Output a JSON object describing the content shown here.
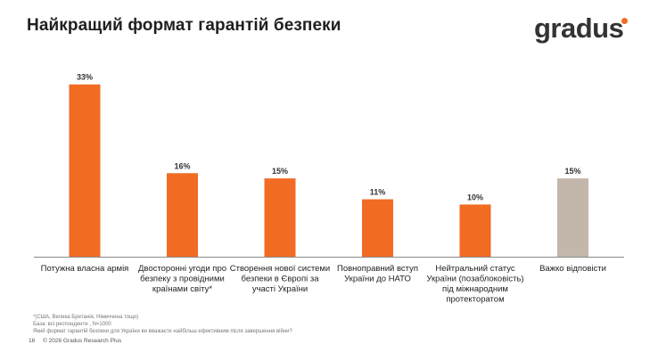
{
  "header": {
    "title": "Найкращий формат гарантій безпеки",
    "logo_text": "gradus"
  },
  "colors": {
    "bar": "#f26b23",
    "bar_neutral": "#c2b7aa",
    "logo_dot": "#f26b23",
    "axis": "#8a8a8a"
  },
  "chart_data": {
    "type": "bar",
    "title": "Найкращий формат гарантій безпеки",
    "xlabel": "",
    "ylabel": "",
    "ylim": [
      0,
      35
    ],
    "grid": false,
    "categories": [
      [
        "Потужна власна армія"
      ],
      [
        "Двосторонні угоди про",
        "безпеку з провідними",
        "країнами світу*"
      ],
      [
        "Створення нової системи",
        "безпеки в Європі за",
        "участі України"
      ],
      [
        "Повноправний вступ",
        "України до НАТО"
      ],
      [
        "Нейтральний статус",
        "України (позаблоковість)",
        "під міжнародним",
        "протекторатом"
      ],
      [
        "Важко відповісти"
      ]
    ],
    "values": [
      33,
      16,
      15,
      11,
      10,
      15
    ],
    "value_labels": [
      "33%",
      "16%",
      "15%",
      "11%",
      "10%",
      "15%"
    ],
    "neutral": [
      false,
      false,
      false,
      false,
      false,
      true
    ]
  },
  "footnotes": [
    "*(США, Велика Британія, Німеччина тощо)",
    "База: всі респонденти , N=1000",
    "Який формат гарантій безпеки для України ви вважаєте найбільш ефективним після завершення війни?"
  ],
  "footer": {
    "page_number": "16",
    "copyright": "© 2026 Gradus Research Plus"
  }
}
